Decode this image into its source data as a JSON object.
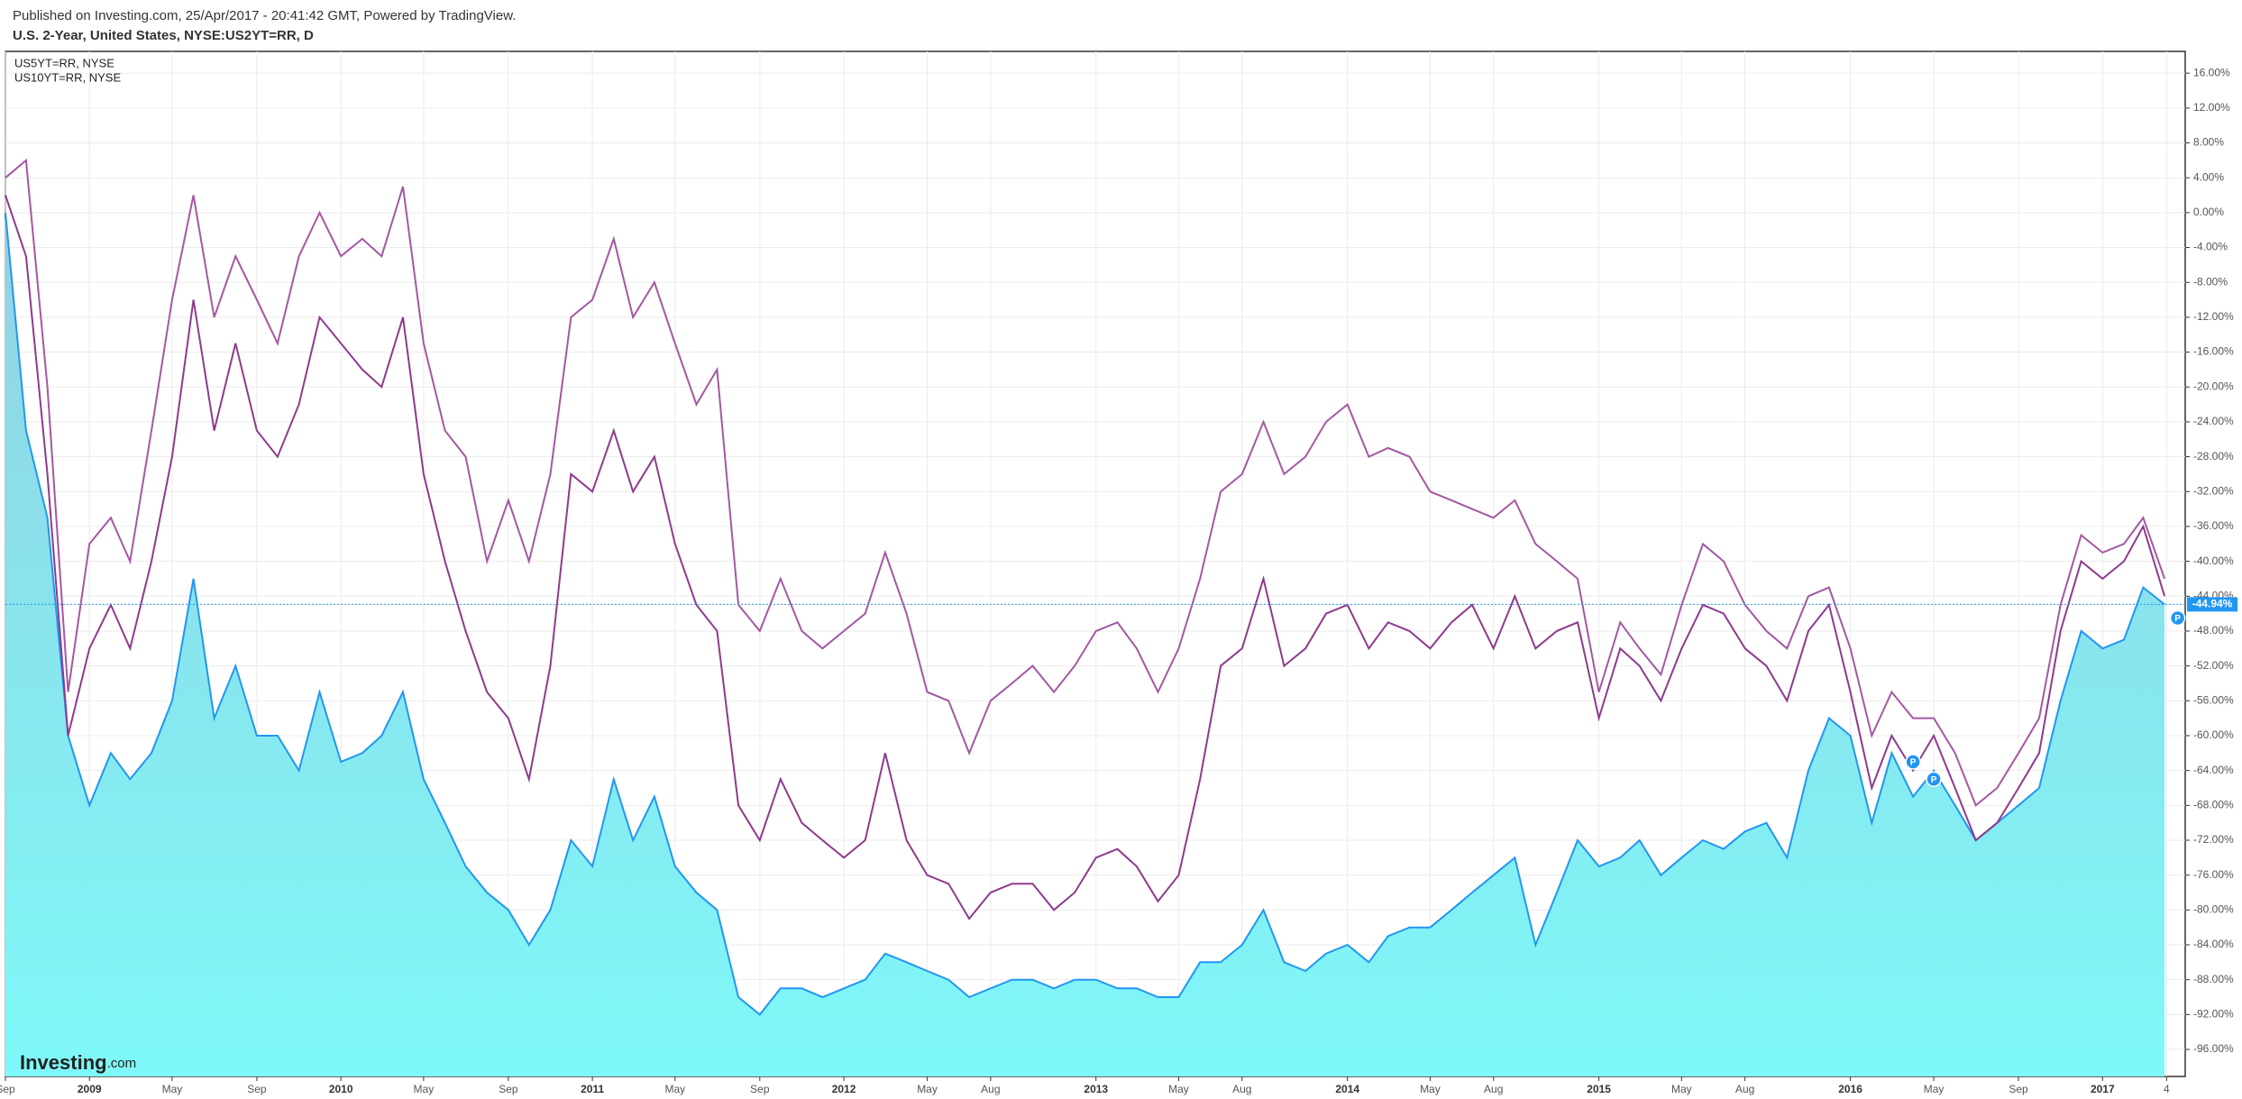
{
  "header": {
    "published": "Published on Investing.com, 25/Apr/2017 - 20:41:42 GMT, Powered by TradingView.",
    "symbol": "U.S. 2-Year, United States, NYSE:US2YT=RR, D"
  },
  "logo": {
    "brand": "Investing",
    "suffix": ".com"
  },
  "chart_data": {
    "type": "line",
    "x": [
      "2008-09",
      "2008-10",
      "2008-11",
      "2008-12",
      "2009-01",
      "2009-02",
      "2009-03",
      "2009-04",
      "2009-05",
      "2009-06",
      "2009-07",
      "2009-08",
      "2009-09",
      "2009-10",
      "2009-11",
      "2009-12",
      "2010-01",
      "2010-02",
      "2010-03",
      "2010-04",
      "2010-05",
      "2010-06",
      "2010-07",
      "2010-08",
      "2010-09",
      "2010-10",
      "2010-11",
      "2010-12",
      "2011-01",
      "2011-02",
      "2011-03",
      "2011-04",
      "2011-05",
      "2011-06",
      "2011-07",
      "2011-08",
      "2011-09",
      "2011-10",
      "2011-11",
      "2011-12",
      "2012-01",
      "2012-02",
      "2012-03",
      "2012-04",
      "2012-05",
      "2012-06",
      "2012-07",
      "2012-08",
      "2012-09",
      "2012-10",
      "2012-11",
      "2012-12",
      "2013-01",
      "2013-02",
      "2013-03",
      "2013-04",
      "2013-05",
      "2013-06",
      "2013-07",
      "2013-08",
      "2013-09",
      "2013-10",
      "2013-11",
      "2013-12",
      "2014-01",
      "2014-02",
      "2014-03",
      "2014-04",
      "2014-05",
      "2014-06",
      "2014-07",
      "2014-08",
      "2014-09",
      "2014-10",
      "2014-11",
      "2014-12",
      "2015-01",
      "2015-02",
      "2015-03",
      "2015-04",
      "2015-05",
      "2015-06",
      "2015-07",
      "2015-08",
      "2015-09",
      "2015-10",
      "2015-11",
      "2015-12",
      "2016-01",
      "2016-02",
      "2016-03",
      "2016-04",
      "2016-05",
      "2016-06",
      "2016-07",
      "2016-08",
      "2016-09",
      "2016-10",
      "2016-11",
      "2016-12",
      "2017-01",
      "2017-02",
      "2017-03",
      "2017-04"
    ],
    "series": [
      {
        "kind": "area",
        "color": "#2196f3",
        "fill": [
          "#93d2e3",
          "#7ef8f8"
        ],
        "values": [
          0,
          -25,
          -35,
          -60,
          -68,
          -62,
          -65,
          -62,
          -56,
          -42,
          -58,
          -52,
          -60,
          -60,
          -64,
          -55,
          -63,
          -62,
          -60,
          -55,
          -65,
          -70,
          -75,
          -78,
          -80,
          -84,
          -80,
          -72,
          -75,
          -65,
          -72,
          -67,
          -75,
          -78,
          -80,
          -90,
          -92,
          -89,
          -89,
          -90,
          -89,
          -88,
          -85,
          -86,
          -87,
          -88,
          -90,
          -89,
          -88,
          -88,
          -89,
          -88,
          -88,
          -89,
          -89,
          -90,
          -90,
          -86,
          -86,
          -84,
          -80,
          -86,
          -87,
          -85,
          -84,
          -86,
          -83,
          -82,
          -82,
          -80,
          -78,
          -76,
          -74,
          -84,
          -78,
          -72,
          -75,
          -74,
          -72,
          -76,
          -74,
          -72,
          -73,
          -71,
          -70,
          -74,
          -64,
          -58,
          -60,
          -70,
          -62,
          -67,
          -64,
          -68,
          -72,
          -70,
          -68,
          -66,
          -56,
          -48,
          -50,
          -49,
          -43,
          -44.94
        ]
      },
      {
        "name": "US5YT=RR, NYSE",
        "kind": "line",
        "color": "#8e3a8e",
        "values": [
          2,
          -5,
          -30,
          -60,
          -50,
          -45,
          -50,
          -40,
          -28,
          -10,
          -25,
          -15,
          -25,
          -28,
          -22,
          -12,
          -15,
          -18,
          -20,
          -12,
          -30,
          -40,
          -48,
          -55,
          -58,
          -65,
          -52,
          -30,
          -32,
          -25,
          -32,
          -28,
          -38,
          -45,
          -48,
          -68,
          -72,
          -65,
          -70,
          -72,
          -74,
          -72,
          -62,
          -72,
          -76,
          -77,
          -81,
          -78,
          -77,
          -77,
          -80,
          -78,
          -74,
          -73,
          -75,
          -79,
          -76,
          -65,
          -52,
          -50,
          -42,
          -52,
          -50,
          -46,
          -45,
          -50,
          -47,
          -48,
          -50,
          -47,
          -45,
          -50,
          -44,
          -50,
          -48,
          -47,
          -58,
          -50,
          -52,
          -56,
          -50,
          -45,
          -46,
          -50,
          -52,
          -56,
          -48,
          -45,
          -55,
          -66,
          -60,
          -64,
          -60,
          -66,
          -72,
          -70,
          -66,
          -62,
          -48,
          -40,
          -42,
          -40,
          -36,
          -44
        ]
      },
      {
        "name": "US10YT=RR, NYSE",
        "kind": "line",
        "color": "#a457a4",
        "values": [
          4,
          6,
          -20,
          -55,
          -38,
          -35,
          -40,
          -25,
          -10,
          2,
          -12,
          -5,
          -10,
          -15,
          -5,
          0,
          -5,
          -3,
          -5,
          3,
          -15,
          -25,
          -28,
          -40,
          -33,
          -40,
          -30,
          -12,
          -10,
          -3,
          -12,
          -8,
          -15,
          -22,
          -18,
          -45,
          -48,
          -42,
          -48,
          -50,
          -48,
          -46,
          -39,
          -46,
          -55,
          -56,
          -62,
          -56,
          -54,
          -52,
          -55,
          -52,
          -48,
          -47,
          -50,
          -55,
          -50,
          -42,
          -32,
          -30,
          -24,
          -30,
          -28,
          -24,
          -22,
          -28,
          -27,
          -28,
          -32,
          -33,
          -34,
          -35,
          -33,
          -38,
          -40,
          -42,
          -55,
          -47,
          -50,
          -53,
          -45,
          -38,
          -40,
          -45,
          -48,
          -50,
          -44,
          -43,
          -50,
          -60,
          -55,
          -58,
          -58,
          -62,
          -68,
          -66,
          -62,
          -58,
          -45,
          -37,
          -39,
          -38,
          -35,
          -42
        ]
      }
    ],
    "xlim": [
      "2008-09-01",
      "2017-05-01"
    ],
    "xticks": [
      {
        "value": "2008-09",
        "label": "Sep"
      },
      {
        "value": "2009-01",
        "label": "2009"
      },
      {
        "value": "2009-05",
        "label": "May"
      },
      {
        "value": "2009-09",
        "label": "Sep"
      },
      {
        "value": "2010-01",
        "label": "2010"
      },
      {
        "value": "2010-05",
        "label": "May"
      },
      {
        "value": "2010-09",
        "label": "Sep"
      },
      {
        "value": "2011-01",
        "label": "2011"
      },
      {
        "value": "2011-05",
        "label": "May"
      },
      {
        "value": "2011-09",
        "label": "Sep"
      },
      {
        "value": "2012-01",
        "label": "2012"
      },
      {
        "value": "2012-05",
        "label": "May"
      },
      {
        "value": "2012-08",
        "label": "Aug"
      },
      {
        "value": "2013-01",
        "label": "2013"
      },
      {
        "value": "2013-05",
        "label": "May"
      },
      {
        "value": "2013-08",
        "label": "Aug"
      },
      {
        "value": "2014-01",
        "label": "2014"
      },
      {
        "value": "2014-05",
        "label": "May"
      },
      {
        "value": "2014-08",
        "label": "Aug"
      },
      {
        "value": "2015-01",
        "label": "2015"
      },
      {
        "value": "2015-05",
        "label": "May"
      },
      {
        "value": "2015-08",
        "label": "Aug"
      },
      {
        "value": "2016-01",
        "label": "2016"
      },
      {
        "value": "2016-05",
        "label": "May"
      },
      {
        "value": "2016-09",
        "label": "Sep"
      },
      {
        "value": "2017-01",
        "label": "2017"
      },
      {
        "value": "2017-04-04",
        "label": "4"
      }
    ],
    "ylim": [
      -99.1,
      18.5
    ],
    "yticks": [
      {
        "value": 16,
        "label": "16.00%"
      },
      {
        "value": 12,
        "label": "12.00%"
      },
      {
        "value": 8,
        "label": "8.00%"
      },
      {
        "value": 4,
        "label": "4.00%"
      },
      {
        "value": 0,
        "label": "0.00%"
      },
      {
        "value": -4,
        "label": "-4.00%"
      },
      {
        "value": -8,
        "label": "-8.00%"
      },
      {
        "value": -12,
        "label": "-12.00%"
      },
      {
        "value": -16,
        "label": "-16.00%"
      },
      {
        "value": -20,
        "label": "-20.00%"
      },
      {
        "value": -24,
        "label": "-24.00%"
      },
      {
        "value": -28,
        "label": "-28.00%"
      },
      {
        "value": -32,
        "label": "-32.00%"
      },
      {
        "value": -36,
        "label": "-36.00%"
      },
      {
        "value": -40,
        "label": "-40.00%"
      },
      {
        "value": -44,
        "label": "-44.00%"
      },
      {
        "value": -48,
        "label": "-48.00%"
      },
      {
        "value": -52,
        "label": "-52.00%"
      },
      {
        "value": -56,
        "label": "-56.00%"
      },
      {
        "value": -60,
        "label": "-60.00%"
      },
      {
        "value": -64,
        "label": "-64.00%"
      },
      {
        "value": -68,
        "label": "-68.00%"
      },
      {
        "value": -72,
        "label": "-72.00%"
      },
      {
        "value": -76,
        "label": "-76.00%"
      },
      {
        "value": -80,
        "label": "-80.00%"
      },
      {
        "value": -84,
        "label": "-84.00%"
      },
      {
        "value": -88,
        "label": "-88.00%"
      },
      {
        "value": -92,
        "label": "-92.00%"
      },
      {
        "value": -96,
        "label": "-96.00%"
      }
    ],
    "grid": true,
    "legend": "top-left",
    "last_value": {
      "value": -44.94,
      "label": "-44.94%",
      "color": "#2196f3"
    },
    "markers": [
      {
        "x": "2016-04",
        "y": -63,
        "label": "P"
      },
      {
        "x": "2016-05",
        "y": -65,
        "label": "P"
      },
      {
        "x": "2017-04-20",
        "y": -46.5,
        "label": "P"
      }
    ]
  }
}
